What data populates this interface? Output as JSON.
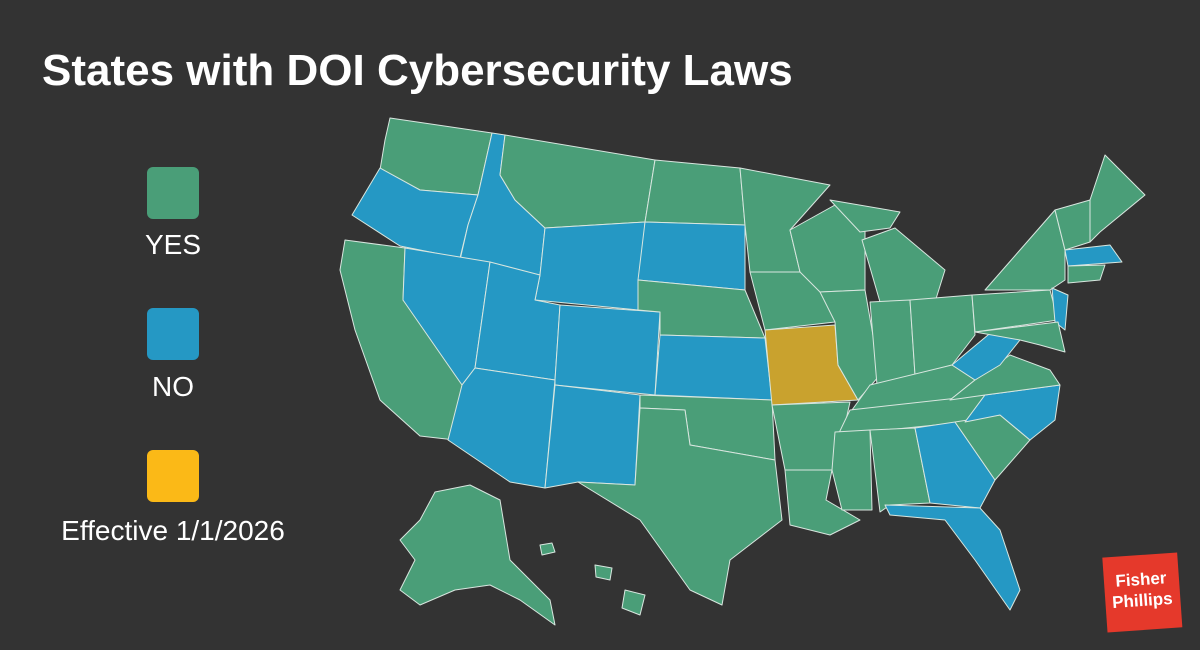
{
  "title": "States with DOI Cybersecurity Laws",
  "legend": [
    {
      "label": "YES",
      "color": "#4a9e78",
      "map_color": "#4a9e78"
    },
    {
      "label": "NO",
      "color": "#2598c4",
      "map_color": "#2598c4"
    },
    {
      "label": "Effective 1/1/2026",
      "color": "#fbb917",
      "map_color": "#c9a22e"
    }
  ],
  "logo": {
    "line1": "Fisher",
    "line2": "Phillips"
  }
}
